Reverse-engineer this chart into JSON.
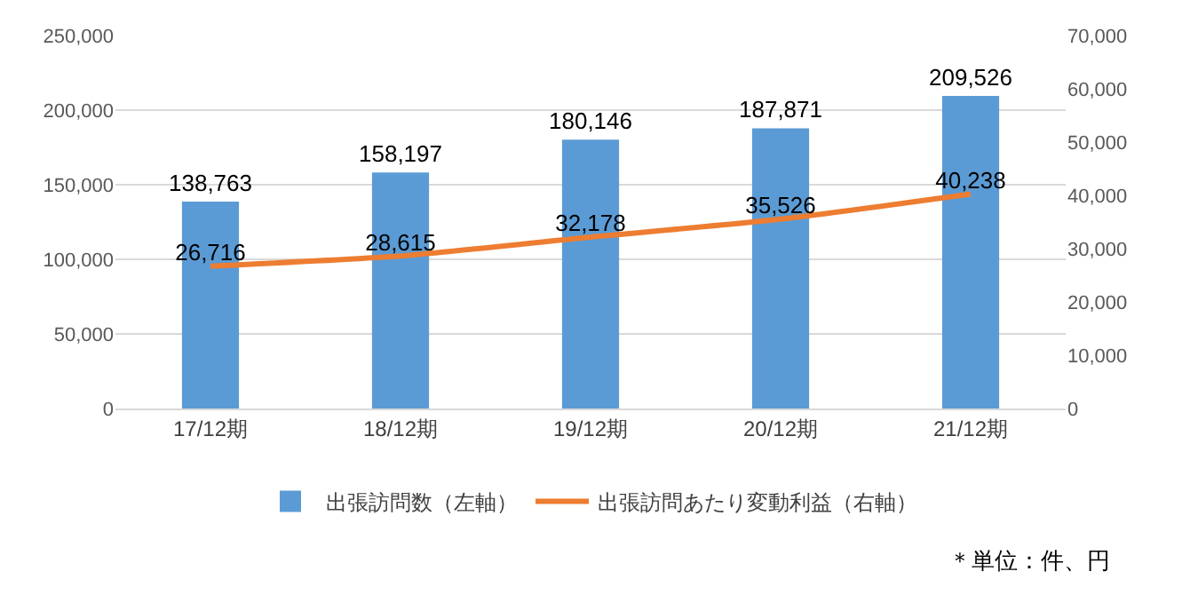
{
  "chart_data": {
    "type": "bar",
    "categories": [
      "17/12期",
      "18/12期",
      "19/12期",
      "20/12期",
      "21/12期"
    ],
    "series": [
      {
        "name": "出張訪問数（左軸）",
        "color": "#5b9bd5",
        "values": [
          138763,
          158197,
          180146,
          187871,
          209526
        ],
        "value_labels": [
          "138,763",
          "158,197",
          "180,146",
          "187,871",
          "209,526"
        ]
      },
      {
        "name": "出張訪問あたり変動利益（右軸）",
        "type": "line",
        "axis": "y2",
        "color": "#ed7d31",
        "values": [
          26716,
          28615,
          32178,
          35526,
          40238
        ],
        "value_labels": [
          "26,716",
          "28,615",
          "32,178",
          "35,526",
          "40,238"
        ]
      }
    ],
    "ylim": [
      0,
      250000
    ],
    "yticks": [
      {
        "value": 0,
        "label": "0"
      },
      {
        "value": 50000,
        "label": "50,000"
      },
      {
        "value": 100000,
        "label": "100,000"
      },
      {
        "value": 150000,
        "label": "150,000"
      },
      {
        "value": 200000,
        "label": "200,000"
      },
      {
        "value": 250000,
        "label": "250,000"
      }
    ],
    "y2lim": [
      0,
      70000
    ],
    "y2ticks": [
      {
        "value": 0,
        "label": "0"
      },
      {
        "value": 10000,
        "label": "10,000"
      },
      {
        "value": 20000,
        "label": "20,000"
      },
      {
        "value": 30000,
        "label": "30,000"
      },
      {
        "value": 40000,
        "label": "40,000"
      },
      {
        "value": 50000,
        "label": "50,000"
      },
      {
        "value": 60000,
        "label": "60,000"
      },
      {
        "value": 70000,
        "label": "70,000"
      }
    ],
    "grid": "y",
    "legend": "bottom",
    "annotations": [
      "＊単位：件、円"
    ]
  }
}
